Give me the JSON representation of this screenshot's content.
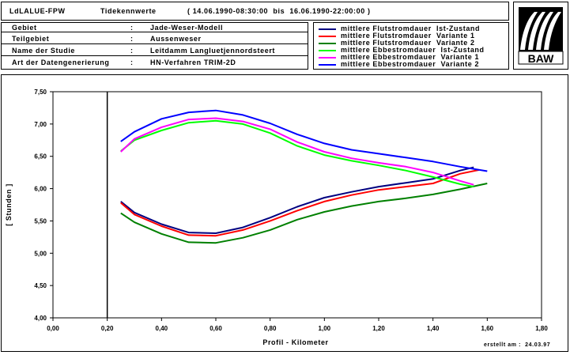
{
  "header": {
    "project": "LdLALUE-FPW",
    "label": "Tidekennwerte",
    "period": "( 14.06.1990-08:30:00  bis  16.06.1990-22:00:00 )"
  },
  "info": {
    "rows": [
      {
        "key": "Gebiet",
        "sep": ":",
        "value": "Jade-Weser-Modell"
      },
      {
        "key": "Teilgebiet",
        "sep": ":",
        "value": "Aussenweser"
      },
      {
        "key": "Name der Studie",
        "sep": ":",
        "value": "Leitdamm Langluetjennordsteert"
      },
      {
        "key": "Art der Datengenerierung",
        "sep": ":",
        "value": "HN-Verfahren TRIM-2D"
      }
    ]
  },
  "logo": {
    "text": "BAW"
  },
  "footer": {
    "created": "erstellt am :  24.03.97"
  },
  "chart_data": {
    "type": "line",
    "xlabel": "Profil - Kilometer",
    "ylabel": "[ Stunden ]",
    "xlim": [
      0.0,
      1.8
    ],
    "ylim": [
      4.0,
      7.5
    ],
    "xticks": [
      "0,00",
      "0,20",
      "0,40",
      "0,60",
      "0,80",
      "1,00",
      "1,20",
      "1,40",
      "1,60",
      "1,80"
    ],
    "yticks": [
      "4,00",
      "4,50",
      "5,00",
      "5,50",
      "6,00",
      "6,50",
      "7,00",
      "7,50"
    ],
    "vline_x": 0.2,
    "legend_position": "top-right",
    "series": [
      {
        "name": "mittlere Flutstromdauer  Ist-Zustand",
        "color": "#000080",
        "points": [
          [
            0.25,
            5.8
          ],
          [
            0.3,
            5.63
          ],
          [
            0.4,
            5.45
          ],
          [
            0.5,
            5.32
          ],
          [
            0.6,
            5.31
          ],
          [
            0.7,
            5.4
          ],
          [
            0.8,
            5.55
          ],
          [
            0.9,
            5.72
          ],
          [
            1.0,
            5.86
          ],
          [
            1.1,
            5.95
          ],
          [
            1.2,
            6.03
          ],
          [
            1.3,
            6.09
          ],
          [
            1.4,
            6.15
          ],
          [
            1.5,
            6.28
          ],
          [
            1.55,
            6.33
          ]
        ]
      },
      {
        "name": "mittlere Flutstromdauer  Variante 1",
        "color": "#ff0000",
        "points": [
          [
            0.25,
            5.78
          ],
          [
            0.3,
            5.6
          ],
          [
            0.4,
            5.42
          ],
          [
            0.5,
            5.28
          ],
          [
            0.6,
            5.27
          ],
          [
            0.7,
            5.36
          ],
          [
            0.8,
            5.5
          ],
          [
            0.9,
            5.66
          ],
          [
            1.0,
            5.8
          ],
          [
            1.1,
            5.9
          ],
          [
            1.2,
            5.98
          ],
          [
            1.3,
            6.03
          ],
          [
            1.4,
            6.08
          ],
          [
            1.5,
            6.23
          ],
          [
            1.57,
            6.29
          ]
        ]
      },
      {
        "name": "mittlere Flutstromdauer  Variante 2",
        "color": "#008000",
        "points": [
          [
            0.25,
            5.62
          ],
          [
            0.3,
            5.48
          ],
          [
            0.4,
            5.3
          ],
          [
            0.5,
            5.17
          ],
          [
            0.6,
            5.16
          ],
          [
            0.7,
            5.24
          ],
          [
            0.8,
            5.36
          ],
          [
            0.9,
            5.52
          ],
          [
            1.0,
            5.64
          ],
          [
            1.1,
            5.73
          ],
          [
            1.2,
            5.8
          ],
          [
            1.3,
            5.85
          ],
          [
            1.4,
            5.91
          ],
          [
            1.5,
            5.99
          ],
          [
            1.6,
            6.08
          ]
        ]
      },
      {
        "name": "mittlere Ebbestromdauer  Ist-Zustand",
        "color": "#00ff00",
        "points": [
          [
            0.25,
            6.58
          ],
          [
            0.3,
            6.75
          ],
          [
            0.4,
            6.9
          ],
          [
            0.5,
            7.02
          ],
          [
            0.6,
            7.05
          ],
          [
            0.7,
            7.0
          ],
          [
            0.8,
            6.86
          ],
          [
            0.9,
            6.66
          ],
          [
            1.0,
            6.52
          ],
          [
            1.1,
            6.43
          ],
          [
            1.2,
            6.36
          ],
          [
            1.3,
            6.28
          ],
          [
            1.4,
            6.18
          ],
          [
            1.5,
            6.07
          ],
          [
            1.55,
            6.03
          ]
        ]
      },
      {
        "name": "mittlere Ebbestromdauer  Variante 1",
        "color": "#ff00ff",
        "points": [
          [
            0.25,
            6.57
          ],
          [
            0.3,
            6.77
          ],
          [
            0.4,
            6.95
          ],
          [
            0.5,
            7.07
          ],
          [
            0.6,
            7.09
          ],
          [
            0.7,
            7.04
          ],
          [
            0.8,
            6.92
          ],
          [
            0.9,
            6.72
          ],
          [
            1.0,
            6.57
          ],
          [
            1.1,
            6.47
          ],
          [
            1.2,
            6.4
          ],
          [
            1.3,
            6.34
          ],
          [
            1.4,
            6.25
          ],
          [
            1.5,
            6.12
          ],
          [
            1.55,
            6.06
          ]
        ]
      },
      {
        "name": "mittlere Ebbestromdauer  Variante 2",
        "color": "#0000ff",
        "points": [
          [
            0.25,
            6.73
          ],
          [
            0.3,
            6.88
          ],
          [
            0.4,
            7.08
          ],
          [
            0.5,
            7.18
          ],
          [
            0.6,
            7.21
          ],
          [
            0.7,
            7.14
          ],
          [
            0.8,
            7.01
          ],
          [
            0.9,
            6.84
          ],
          [
            1.0,
            6.7
          ],
          [
            1.1,
            6.6
          ],
          [
            1.2,
            6.54
          ],
          [
            1.3,
            6.48
          ],
          [
            1.4,
            6.42
          ],
          [
            1.5,
            6.34
          ],
          [
            1.6,
            6.27
          ]
        ]
      }
    ]
  }
}
